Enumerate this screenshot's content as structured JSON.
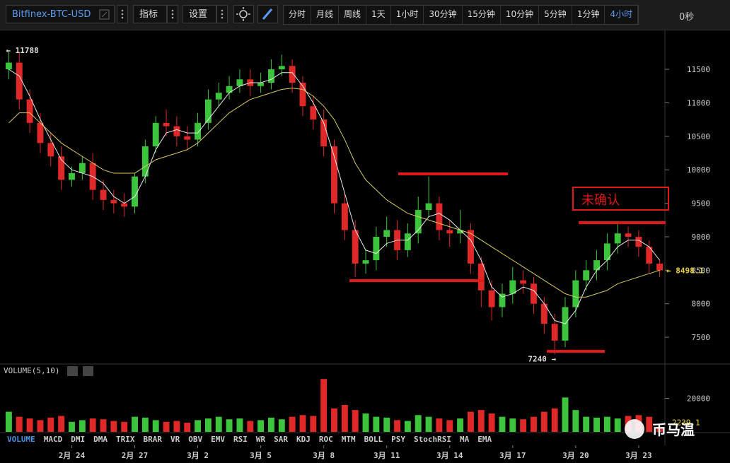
{
  "toolbar": {
    "symbol": "Bitfinex-BTC-USD",
    "indicators": "指标",
    "settings": "设置",
    "periods": [
      "分时",
      "月线",
      "周线",
      "1天",
      "1小时",
      "30分钟",
      "15分钟",
      "10分钟",
      "5分钟",
      "1分钟",
      "4小时"
    ],
    "active_period": 10,
    "countdown": "0秒"
  },
  "chart_data": [
    {
      "type": "candlestick",
      "up_color": "#3cc43c",
      "down_color": "#e02828",
      "categories": [
        null,
        null,
        null,
        null,
        null,
        null,
        "2月 24",
        null,
        null,
        null,
        null,
        null,
        "2月 27",
        null,
        null,
        null,
        null,
        null,
        "3月 2",
        null,
        null,
        null,
        null,
        null,
        "3月 5",
        null,
        null,
        null,
        null,
        null,
        "3月 8",
        null,
        null,
        null,
        null,
        null,
        "3月 11",
        null,
        null,
        null,
        null,
        null,
        "3月 14",
        null,
        null,
        null,
        null,
        null,
        "3月 17",
        null,
        null,
        null,
        null,
        null,
        "3月 20",
        null,
        null,
        null,
        null,
        null,
        "3月 23",
        null,
        null
      ],
      "open": [
        11500,
        11600,
        11050,
        10700,
        10400,
        10200,
        9850,
        9950,
        10100,
        9700,
        9550,
        9500,
        9450,
        9900,
        10350,
        10700,
        10650,
        10500,
        10450,
        10700,
        11050,
        11150,
        11250,
        11350,
        11250,
        11300,
        11500,
        11550,
        11300,
        10950,
        10750,
        10350,
        9500,
        9100,
        8600,
        8650,
        9000,
        9100,
        8800,
        9050,
        9400,
        9500,
        9100,
        9050,
        9100,
        8600,
        8200,
        7950,
        8150,
        8350,
        8300,
        8000,
        7700,
        7450,
        7950,
        8350,
        8500,
        8650,
        8900,
        9050,
        9000,
        8850,
        8600
      ],
      "high": [
        11788,
        11750,
        11200,
        10850,
        10550,
        10350,
        10050,
        10200,
        10250,
        9850,
        9700,
        9650,
        9950,
        10450,
        10800,
        10900,
        10800,
        10650,
        10850,
        11200,
        11300,
        11400,
        11500,
        11500,
        11450,
        11650,
        11720,
        11650,
        11400,
        11100,
        10900,
        10450,
        9650,
        9250,
        8800,
        9150,
        9300,
        9250,
        9200,
        9600,
        9900,
        9600,
        9250,
        9400,
        9200,
        8700,
        8350,
        8300,
        8550,
        8500,
        8400,
        8100,
        7850,
        8100,
        8500,
        8650,
        8800,
        9050,
        9200,
        9150,
        9100,
        8950,
        8650
      ],
      "low": [
        11350,
        10900,
        10550,
        10250,
        10050,
        9700,
        9750,
        9850,
        9550,
        9400,
        9350,
        9300,
        9350,
        9800,
        10250,
        10500,
        10350,
        10300,
        10350,
        10600,
        10950,
        11050,
        11150,
        11100,
        11150,
        11200,
        11400,
        11150,
        10800,
        10600,
        10200,
        9350,
        8950,
        8400,
        8450,
        8500,
        8850,
        8650,
        8700,
        8900,
        9300,
        8950,
        8850,
        8900,
        8450,
        7950,
        7750,
        7800,
        8000,
        8150,
        7850,
        7550,
        7240,
        7350,
        7800,
        8200,
        8350,
        8500,
        8750,
        8850,
        8700,
        8450,
        8400
      ],
      "close": [
        11600,
        11050,
        10700,
        10400,
        10200,
        9850,
        9950,
        10100,
        9700,
        9550,
        9500,
        9450,
        9900,
        10350,
        10700,
        10650,
        10500,
        10450,
        10700,
        11050,
        11150,
        11250,
        11350,
        11250,
        11300,
        11500,
        11550,
        11300,
        10950,
        10750,
        10350,
        9500,
        9100,
        8600,
        8650,
        9000,
        9100,
        8800,
        9050,
        9400,
        9500,
        9100,
        9050,
        9100,
        8600,
        8200,
        7950,
        8150,
        8350,
        8300,
        8000,
        7700,
        7450,
        7950,
        8350,
        8500,
        8650,
        8900,
        9050,
        9000,
        8850,
        8600,
        8498.1
      ],
      "ma_lines": [
        {
          "color": "#e8e8e8",
          "values": [
            11500,
            11400,
            11100,
            10750,
            10450,
            10150,
            10000,
            9950,
            9900,
            9800,
            9600,
            9500,
            9600,
            9900,
            10300,
            10550,
            10600,
            10550,
            10550,
            10750,
            10950,
            11150,
            11250,
            11300,
            11300,
            11350,
            11450,
            11450,
            11250,
            11000,
            10700,
            10200,
            9650,
            9100,
            8800,
            8750,
            8900,
            8950,
            8950,
            9100,
            9300,
            9350,
            9250,
            9100,
            8950,
            8650,
            8250,
            8100,
            8150,
            8250,
            8200,
            8000,
            7750,
            7700,
            7900,
            8250,
            8500,
            8650,
            8850,
            8950,
            8950,
            8850,
            8650
          ]
        },
        {
          "color": "#d8c860",
          "values": [
            10700,
            10850,
            10850,
            10700,
            10550,
            10400,
            10300,
            10200,
            10100,
            10000,
            9950,
            9950,
            9950,
            10050,
            10150,
            10200,
            10250,
            10300,
            10400,
            10550,
            10700,
            10850,
            10950,
            11050,
            11100,
            11150,
            11200,
            11220,
            11200,
            11100,
            10950,
            10750,
            10450,
            10100,
            9850,
            9700,
            9550,
            9450,
            9350,
            9300,
            9250,
            9200,
            9150,
            9100,
            9050,
            8950,
            8850,
            8750,
            8650,
            8550,
            8450,
            8350,
            8250,
            8150,
            8100,
            8100,
            8150,
            8200,
            8300,
            8350,
            8400,
            8450,
            8500
          ]
        }
      ],
      "ylim": [
        7100,
        12060
      ],
      "yticks": [
        7500,
        8000,
        8500,
        9000,
        9500,
        10000,
        10500,
        11000,
        11500
      ],
      "high_label": "← 11788",
      "low_label": "7240 →",
      "last_label": "← 8498.1",
      "annotation": "未确认"
    },
    {
      "type": "bar",
      "title": "VOLUME(5,10)",
      "values": [
        12000,
        9000,
        8000,
        7000,
        8500,
        9500,
        6000,
        7000,
        8000,
        7500,
        6500,
        6000,
        9000,
        8500,
        7000,
        6000,
        6500,
        5500,
        7000,
        8000,
        9000,
        7500,
        8000,
        6500,
        7000,
        8500,
        7500,
        9000,
        10000,
        9500,
        31500,
        14000,
        16000,
        13000,
        11000,
        9000,
        8500,
        7000,
        6500,
        10000,
        9000,
        8000,
        7000,
        8000,
        12000,
        13000,
        11000,
        9000,
        8000,
        7500,
        9000,
        12000,
        14000,
        20500,
        13000,
        9000,
        8500,
        9000,
        8000,
        9500,
        10000,
        9000,
        2239.1
      ],
      "ylim": [
        0,
        32000
      ],
      "yticks": [
        20000
      ]
    }
  ],
  "indicator_tabs": [
    "VOLUME",
    "MACD",
    "DMI",
    "DMA",
    "TRIX",
    "BRAR",
    "VR",
    "OBV",
    "EMV",
    "RSI",
    "WR",
    "SAR",
    "KDJ",
    "ROC",
    "MTM",
    "BOLL",
    "PSY",
    "StochRSI",
    "MA",
    "EMA"
  ],
  "active_tab": 0,
  "watermark": "币马温"
}
